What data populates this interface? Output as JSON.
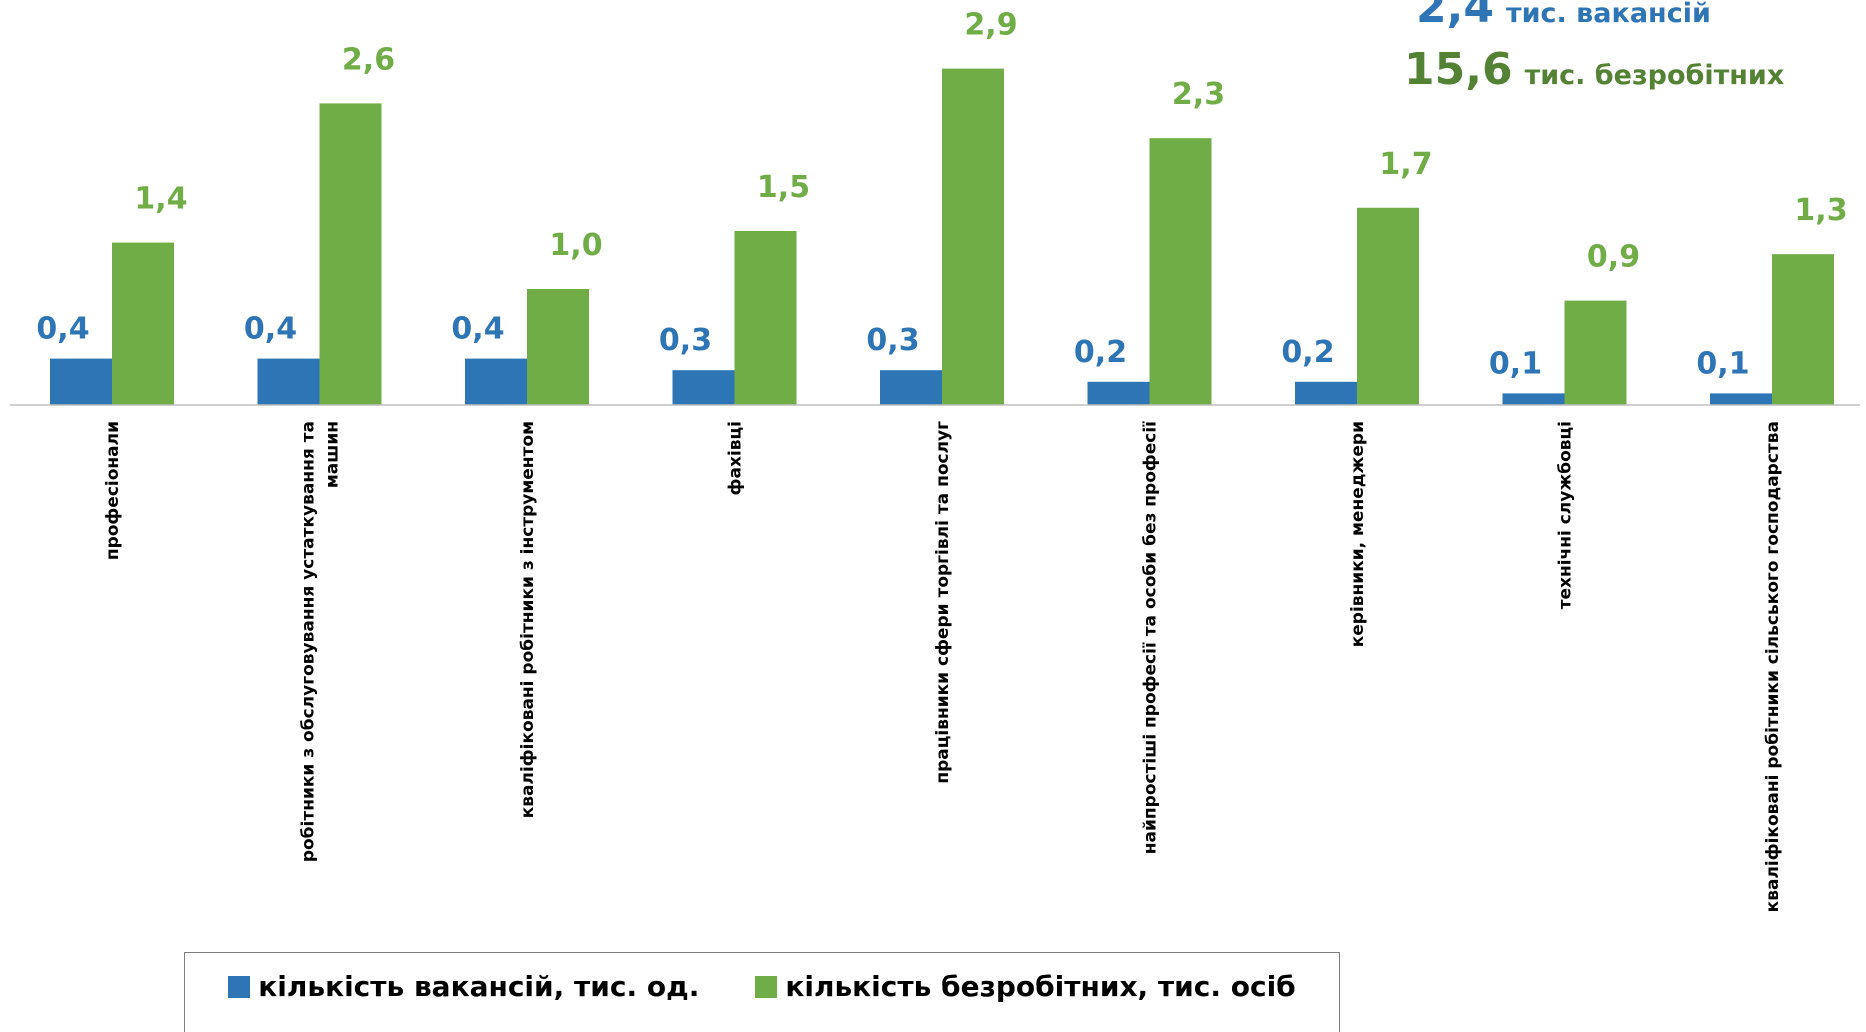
{
  "chart_data": {
    "type": "bar",
    "title": "",
    "xlabel": "",
    "ylabel": "",
    "ylim": [
      0,
      3.2
    ],
    "grid": false,
    "legend_position": "bottom",
    "categories": [
      "професіонали",
      [
        "робітники з обслуговування устаткування та",
        "машин"
      ],
      "кваліфіковані робітники з інструментом",
      "фахівці",
      "працівники сфери торгівлі та послуг",
      "найпростіші професії та особи без професії",
      "керівники, менеджери",
      "технічні службовці",
      "кваліфіковані робітники сільського господарства"
    ],
    "series": [
      {
        "name": "кількість вакансій, тис. од.",
        "color": "#2e75b6",
        "values": [
          0.4,
          0.4,
          0.4,
          0.3,
          0.3,
          0.2,
          0.2,
          0.1,
          0.1
        ],
        "labels": [
          "0,4",
          "0,4",
          "0,4",
          "0,3",
          "0,3",
          "0,2",
          "0,2",
          "0,1",
          "0,1"
        ]
      },
      {
        "name": "кількість безробітних, тис. осіб",
        "color": "#70ad47",
        "values": [
          1.4,
          2.6,
          1.0,
          1.5,
          2.9,
          2.3,
          1.7,
          0.9,
          1.3
        ],
        "labels": [
          "1,4",
          "2,6",
          "1,0",
          "1,5",
          "2,9",
          "2,3",
          "1,7",
          "0,9",
          "1,3"
        ]
      }
    ],
    "annotations": [
      {
        "value": "2,4",
        "text": "тис. вакансій",
        "color": "#2e75b6"
      },
      {
        "value": "15,6",
        "text": "тис. безробітних",
        "color": "#548235"
      }
    ]
  }
}
